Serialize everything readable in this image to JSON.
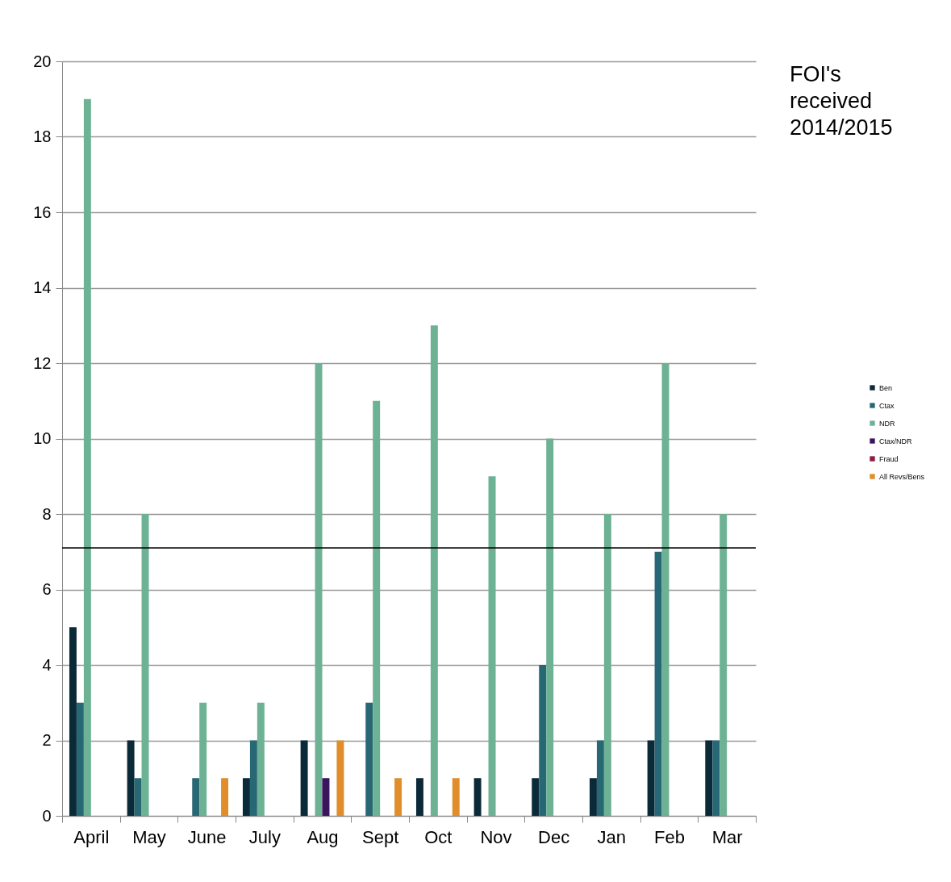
{
  "chart_data": {
    "type": "bar",
    "title": "FOI's\nreceived\n2014/2015",
    "categories": [
      "April",
      "May",
      "June",
      "July",
      "Aug",
      "Sept",
      "Oct",
      "Nov",
      "Dec",
      "Jan",
      "Feb",
      "Mar"
    ],
    "series": [
      {
        "name": "Ben",
        "color": "#0b2a38",
        "values": [
          5,
          2,
          0,
          1,
          2,
          0,
          1,
          1,
          1,
          1,
          2,
          2
        ]
      },
      {
        "name": "Ctax",
        "color": "#276874",
        "values": [
          3,
          1,
          1,
          2,
          0,
          3,
          0,
          0,
          4,
          2,
          7,
          2
        ]
      },
      {
        "name": "NDR",
        "color": "#6db294",
        "values": [
          19,
          8,
          3,
          3,
          12,
          11,
          13,
          9,
          10,
          8,
          12,
          8
        ]
      },
      {
        "name": "Ctax/NDR",
        "color": "#3a145e",
        "values": [
          0,
          0,
          0,
          0,
          1,
          0,
          0,
          0,
          0,
          0,
          0,
          0
        ]
      },
      {
        "name": "Fraud",
        "color": "#8e1a46",
        "values": [
          0,
          0,
          0,
          0,
          0,
          0,
          0,
          0,
          0,
          0,
          0,
          0
        ]
      },
      {
        "name": "All Revs/Bens",
        "color": "#e08e2c",
        "values": [
          0,
          0,
          1,
          0,
          2,
          1,
          1,
          0,
          0,
          0,
          0,
          0
        ]
      }
    ],
    "ylim": [
      0,
      20
    ],
    "yticks": [
      0,
      2,
      4,
      6,
      8,
      10,
      12,
      14,
      16,
      18,
      20
    ],
    "grid": "y",
    "legend": "right",
    "ref_lines": [
      {
        "axis": "y",
        "value": 7.1,
        "color": "#000000"
      }
    ]
  }
}
